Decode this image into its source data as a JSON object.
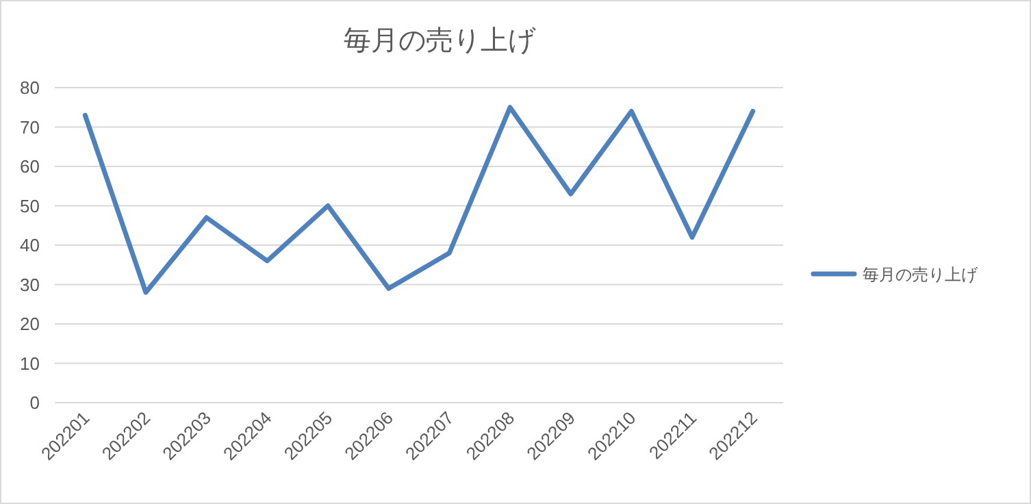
{
  "chart_data": {
    "type": "line",
    "title": "毎月の売り上げ",
    "categories": [
      "202201",
      "202202",
      "202203",
      "202204",
      "202205",
      "202206",
      "202207",
      "202208",
      "202209",
      "202210",
      "202211",
      "202212"
    ],
    "series": [
      {
        "name": "毎月の売り上げ",
        "color": "#4f81bd",
        "values": [
          73,
          28,
          47,
          36,
          50,
          29,
          38,
          75,
          53,
          74,
          42,
          74
        ]
      }
    ],
    "ylim": [
      0,
      80
    ],
    "yticks": [
      0,
      10,
      20,
      30,
      40,
      50,
      60,
      70,
      80
    ],
    "grid": "y",
    "legend": "right",
    "marker": "none",
    "line_style": "solid"
  }
}
